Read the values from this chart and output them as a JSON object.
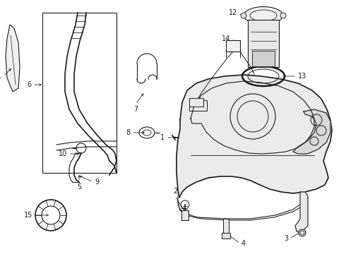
{
  "bg_color": "#ffffff",
  "line_color": "#1a1a1a",
  "label_color": "#000000",
  "figsize": [
    4.9,
    3.6
  ],
  "dpi": 100,
  "xlim": [
    0,
    490
  ],
  "ylim": [
    0,
    360
  ]
}
